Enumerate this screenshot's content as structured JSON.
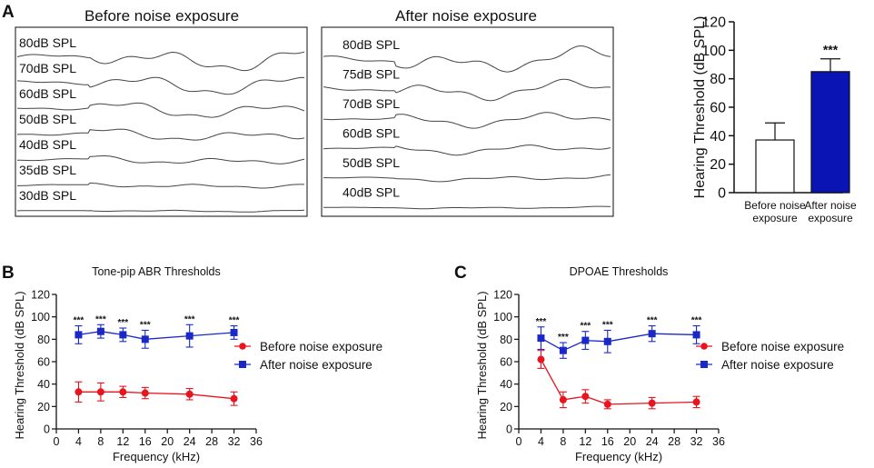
{
  "panels": {
    "a": {
      "letter": "A"
    },
    "b": {
      "letter": "B"
    },
    "c": {
      "letter": "C"
    }
  },
  "waveforms": {
    "before": {
      "title": "Before noise exposure",
      "levels": [
        "80dB SPL",
        "70dB SPL",
        "60dB SPL",
        "50dB SPL",
        "40dB SPL",
        "35dB SPL",
        "30dB SPL"
      ]
    },
    "after": {
      "title": "After noise exposure",
      "levels": [
        "80dB SPL",
        "75dB SPL",
        "70dB SPL",
        "60dB SPL",
        "50dB SPL",
        "40dB SPL"
      ]
    }
  },
  "chart_data": [
    {
      "id": "bar",
      "type": "bar",
      "title": "",
      "ylabel": "Hearing Threshold (dB SPL)",
      "categories": [
        "Before noise exposure",
        "After noise exposure"
      ],
      "category_lines": [
        [
          "Before noise",
          "exposure"
        ],
        [
          "After noise",
          "exposure"
        ]
      ],
      "values": [
        37,
        85
      ],
      "errors": [
        12,
        9
      ],
      "ylim": [
        0,
        120
      ],
      "yticks": [
        0,
        20,
        40,
        60,
        80,
        100,
        120
      ],
      "significance": [
        "",
        "***"
      ],
      "colors": [
        "#ffffff",
        "#0a14b4"
      ]
    },
    {
      "id": "abr",
      "type": "line",
      "title": "Tone-pip ABR Thresholds",
      "xlabel": "Frequency (kHz)",
      "ylabel": "Hearing Threshold (dB SPL)",
      "xlim": [
        0,
        36
      ],
      "ylim": [
        0,
        120
      ],
      "xticks": [
        0,
        4,
        8,
        12,
        16,
        20,
        24,
        28,
        32,
        36
      ],
      "yticks": [
        0,
        20,
        40,
        60,
        80,
        100,
        120
      ],
      "x": [
        4,
        8,
        12,
        16,
        24,
        32
      ],
      "series": [
        {
          "name": "Before noise exposure",
          "color": "#e8141e",
          "marker": "circle",
          "values": [
            33,
            33,
            33,
            32,
            31,
            27
          ],
          "errors": [
            9,
            8,
            5,
            5,
            5,
            6
          ]
        },
        {
          "name": "After noise exposure",
          "color": "#1a28c8",
          "marker": "square",
          "values": [
            84,
            87,
            84,
            80,
            83,
            86
          ],
          "errors": [
            8,
            6,
            6,
            8,
            10,
            6
          ]
        }
      ],
      "significance": [
        "***",
        "***",
        "***",
        "***",
        "***",
        "***"
      ]
    },
    {
      "id": "dpoae",
      "type": "line",
      "title": "DPOAE Thresholds",
      "xlabel": "Frequency (kHz)",
      "ylabel": "Hearing Threshold (dB SPL)",
      "xlim": [
        0,
        36
      ],
      "ylim": [
        0,
        120
      ],
      "xticks": [
        0,
        4,
        8,
        12,
        16,
        20,
        24,
        28,
        32,
        36
      ],
      "yticks": [
        0,
        20,
        40,
        60,
        80,
        100,
        120
      ],
      "x": [
        4,
        8,
        12,
        16,
        24,
        32
      ],
      "series": [
        {
          "name": "Before noise exposure",
          "color": "#e8141e",
          "marker": "circle",
          "values": [
            62,
            26,
            29,
            22,
            23,
            24
          ],
          "errors": [
            8,
            7,
            6,
            4,
            5,
            5
          ]
        },
        {
          "name": "After noise exposure",
          "color": "#1a28c8",
          "marker": "square",
          "values": [
            81,
            70,
            79,
            78,
            85,
            84
          ],
          "errors": [
            10,
            7,
            8,
            10,
            7,
            8
          ]
        }
      ],
      "significance": [
        "***",
        "***",
        "***",
        "***",
        "***",
        "***"
      ]
    }
  ]
}
